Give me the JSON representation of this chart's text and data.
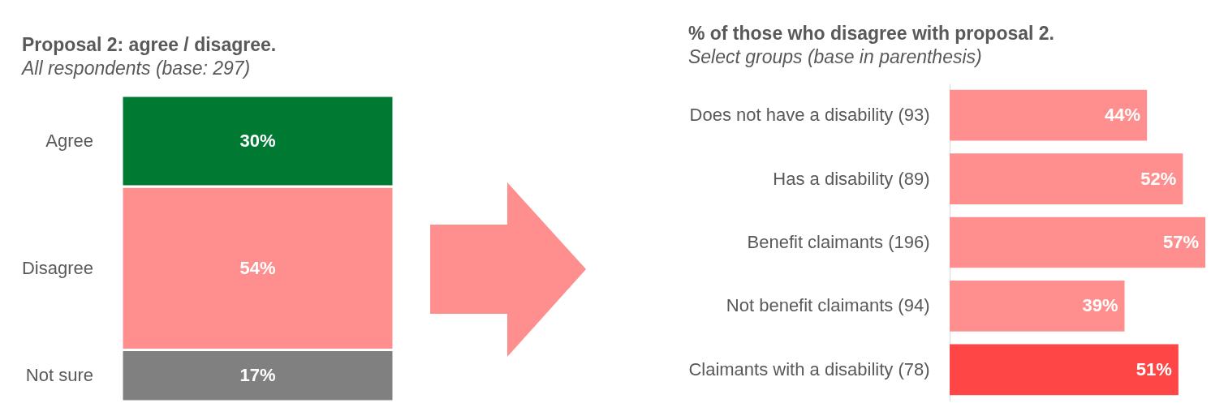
{
  "chart_data": [
    {
      "type": "bar",
      "title": "Proposal 2: agree / disagree.",
      "subtitle": "All respondents (base: 297)",
      "categories": [
        null
      ],
      "stacked": true,
      "series": [
        {
          "name": "Not sure",
          "color": "#808080",
          "values": [
            17
          ],
          "value_labels": [
            "17%"
          ]
        },
        {
          "name": "Disagree",
          "color": "#ff8f8f",
          "values": [
            54
          ],
          "value_labels": [
            "54%"
          ]
        },
        {
          "name": "Agree",
          "color": "#007a33",
          "values": [
            30
          ],
          "value_labels": [
            "30%"
          ]
        }
      ]
    },
    {
      "type": "bar",
      "orientation": "horizontal",
      "title": "% of those who disagree with proposal 2.",
      "subtitle": "Select groups (base in parenthesis)",
      "categories": [
        "Does not have a disability (93)",
        "Has a disability (89)",
        "Benefit claimants (196)",
        "Not benefit claimants (94)",
        "Claimants with a disability (78)"
      ],
      "values": [
        44,
        52,
        57,
        39,
        51
      ],
      "value_labels": [
        "44%",
        "52%",
        "57%",
        "39%",
        "51%"
      ],
      "colors": [
        "#ff8f8f",
        "#ff8f8f",
        "#ff8f8f",
        "#ff8f8f",
        "#ff4646"
      ]
    }
  ]
}
